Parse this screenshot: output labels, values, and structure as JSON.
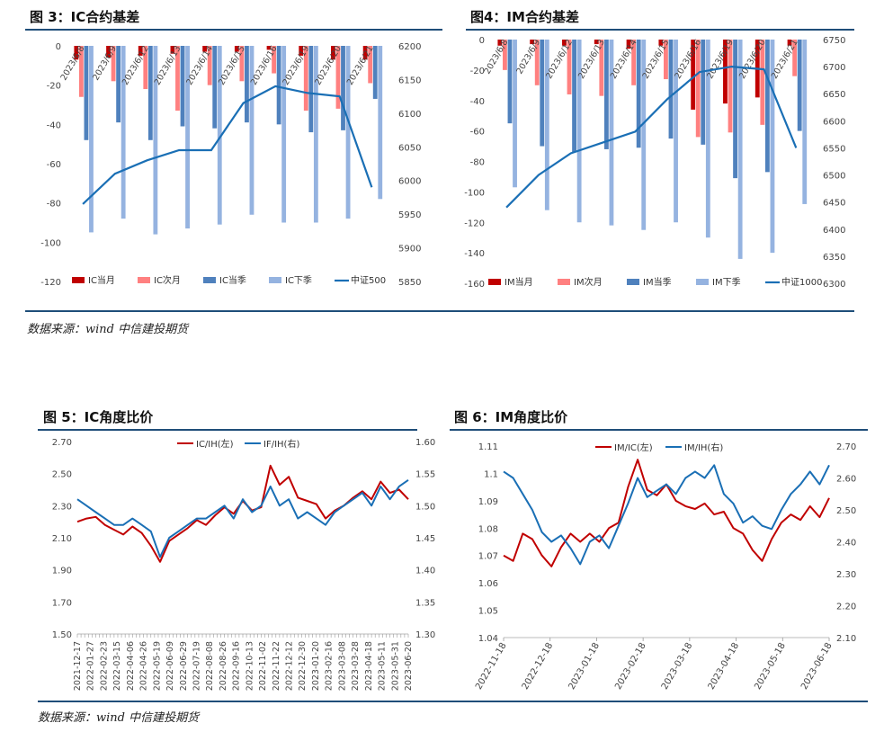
{
  "titles": {
    "fig3": "图 3：IC合约基差",
    "fig4": "图4：IM合约基差",
    "fig5": "图 5：IC角度比价",
    "fig6": "图 6：IM角度比价"
  },
  "source_top": "数据来源：wind 中信建投期货",
  "source_bottom": "数据来源：wind 中信建投期货",
  "colors": {
    "rule": "#1f4e79",
    "dark_red": "#c00000",
    "light_red": "#ff8080",
    "mid_blue": "#4f81bd",
    "light_blue": "#95b3e0",
    "line_blue": "#1a6fb5"
  },
  "chart_data": [
    {
      "type": "bar",
      "title": "图 3：IC合约基差",
      "categories": [
        "2023/6/8",
        "2023/6/9",
        "2023/6/12",
        "2023/6/13",
        "2023/6/14",
        "2023/6/15",
        "2023/6/16",
        "2023/6/19",
        "2023/6/20",
        "2023/6/21"
      ],
      "ylim": [
        -120,
        0
      ],
      "y_ticks": [
        "0",
        "-20",
        "-40",
        "-60",
        "-80",
        "-100",
        "-120"
      ],
      "y2lim": [
        5850,
        6200
      ],
      "y2_ticks": [
        "6200",
        "6150",
        "6100",
        "6050",
        "6000",
        "5950",
        "5900",
        "5850"
      ],
      "series": [
        {
          "name": "IC当月",
          "values": [
            -7,
            -6,
            -5,
            -4,
            -3,
            -3,
            -2,
            -5,
            -7,
            -7
          ]
        },
        {
          "name": "IC次月",
          "values": [
            -26,
            -18,
            -22,
            -33,
            -20,
            -18,
            -14,
            -33,
            -32,
            -19
          ]
        },
        {
          "name": "IC当季",
          "values": [
            -48,
            -39,
            -48,
            -41,
            -42,
            -39,
            -40,
            -44,
            -43,
            -27
          ]
        },
        {
          "name": "IC下季",
          "values": [
            -95,
            -88,
            -96,
            -93,
            -91,
            -86,
            -90,
            -90,
            -88,
            -78
          ]
        }
      ],
      "line_series": {
        "name": "中证500",
        "values": [
          5965,
          6010,
          6030,
          6045,
          6045,
          6115,
          6140,
          6130,
          6125,
          5990
        ]
      },
      "legend": "bottom"
    },
    {
      "type": "bar",
      "title": "图4：IM合约基差",
      "categories": [
        "2023/6/8",
        "2023/6/9",
        "2023/6/12",
        "2023/6/13",
        "2023/6/14",
        "2023/6/15",
        "2023/6/16",
        "2023/6/19",
        "2023/6/20",
        "2023/6/21"
      ],
      "ylim": [
        -160,
        0
      ],
      "y_ticks": [
        "0",
        "-20",
        "-40",
        "-60",
        "-80",
        "-100",
        "-120",
        "-140",
        "-160"
      ],
      "y2lim": [
        6300,
        6750
      ],
      "y2_ticks": [
        "6750",
        "6700",
        "6650",
        "6600",
        "6550",
        "6500",
        "6450",
        "6400",
        "6350",
        "6300"
      ],
      "series": [
        {
          "name": "IM当月",
          "values": [
            -4,
            -3,
            -4,
            -3,
            -6,
            -4,
            -46,
            -42,
            -38,
            -4
          ]
        },
        {
          "name": "IM次月",
          "values": [
            -20,
            -30,
            -36,
            -37,
            -30,
            -26,
            -64,
            -61,
            -56,
            -24
          ]
        },
        {
          "name": "IM当季",
          "values": [
            -55,
            -70,
            -74,
            -72,
            -71,
            -65,
            -69,
            -91,
            -87,
            -60
          ]
        },
        {
          "name": "IM下季",
          "values": [
            -97,
            -112,
            -120,
            -122,
            -125,
            -120,
            -130,
            -144,
            -140,
            -108
          ]
        }
      ],
      "line_series": {
        "name": "中证1000",
        "values": [
          6440,
          6500,
          6540,
          6560,
          6580,
          6640,
          6690,
          6700,
          6695,
          6550
        ]
      },
      "legend": "bottom"
    },
    {
      "type": "line",
      "title": "图 5：IC角度比价",
      "x_ticks": [
        "2021-12-17",
        "2022-01-27",
        "2022-02-23",
        "2022-03-15",
        "2022-04-06",
        "2022-04-26",
        "2022-05-19",
        "2022-06-09",
        "2022-06-29",
        "2022-07-19",
        "2022-08-08",
        "2022-08-26",
        "2022-09-16",
        "2022-10-13",
        "2022-11-02",
        "2022-11-22",
        "2022-12-12",
        "2022-12-30",
        "2023-01-20",
        "2023-02-16",
        "2023-03-08",
        "2023-03-28",
        "2023-04-18",
        "2023-05-11",
        "2023-05-31",
        "2023-06-20"
      ],
      "ylim": [
        1.5,
        2.7
      ],
      "y_ticks": [
        "2.70",
        "2.50",
        "2.30",
        "2.10",
        "1.90",
        "1.70",
        "1.50"
      ],
      "y2lim": [
        1.3,
        1.6
      ],
      "y2_ticks": [
        "1.60",
        "1.55",
        "1.50",
        "1.45",
        "1.40",
        "1.35",
        "1.30"
      ],
      "series": [
        {
          "name": "IC/IH(左)",
          "values": [
            2.2,
            2.22,
            2.23,
            2.18,
            2.15,
            2.12,
            2.17,
            2.13,
            2.05,
            1.95,
            2.08,
            2.12,
            2.16,
            2.21,
            2.18,
            2.24,
            2.29,
            2.25,
            2.33,
            2.27,
            2.29,
            2.55,
            2.43,
            2.48,
            2.35,
            2.33,
            2.31,
            2.22,
            2.27,
            2.3,
            2.35,
            2.39,
            2.34,
            2.45,
            2.38,
            2.4,
            2.34
          ]
        },
        {
          "name": "IF/IH(右)",
          "values": [
            1.51,
            1.5,
            1.49,
            1.48,
            1.47,
            1.47,
            1.48,
            1.47,
            1.46,
            1.42,
            1.45,
            1.46,
            1.47,
            1.48,
            1.48,
            1.49,
            1.5,
            1.48,
            1.51,
            1.49,
            1.5,
            1.53,
            1.5,
            1.51,
            1.48,
            1.49,
            1.48,
            1.47,
            1.49,
            1.5,
            1.51,
            1.52,
            1.5,
            1.53,
            1.51,
            1.53,
            1.54
          ]
        }
      ],
      "legend": "top"
    },
    {
      "type": "line",
      "title": "图 6：IM角度比价",
      "x_ticks": [
        "2022-11-18",
        "2022-12-18",
        "2023-01-18",
        "2023-02-18",
        "2023-03-18",
        "2023-04-18",
        "2023-05-18",
        "2023-06-18"
      ],
      "ylim": [
        1.04,
        1.11
      ],
      "y_ticks": [
        "1.11",
        "1.1",
        "1.09",
        "1.08",
        "1.07",
        "1.06",
        "1.05",
        "1.04"
      ],
      "y2lim": [
        2.1,
        2.7
      ],
      "y2_ticks": [
        "2.70",
        "2.60",
        "2.50",
        "2.40",
        "2.30",
        "2.20",
        "2.10"
      ],
      "series": [
        {
          "name": "IM/IC(左)",
          "values": [
            1.07,
            1.068,
            1.078,
            1.076,
            1.07,
            1.066,
            1.073,
            1.078,
            1.075,
            1.078,
            1.075,
            1.08,
            1.082,
            1.095,
            1.105,
            1.094,
            1.092,
            1.096,
            1.09,
            1.088,
            1.087,
            1.089,
            1.085,
            1.086,
            1.08,
            1.078,
            1.072,
            1.068,
            1.076,
            1.082,
            1.085,
            1.083,
            1.088,
            1.084,
            1.091
          ]
        },
        {
          "name": "IM/IH(右)",
          "values": [
            2.62,
            2.6,
            2.55,
            2.5,
            2.43,
            2.4,
            2.42,
            2.38,
            2.33,
            2.4,
            2.42,
            2.38,
            2.45,
            2.52,
            2.6,
            2.54,
            2.56,
            2.58,
            2.55,
            2.6,
            2.62,
            2.6,
            2.64,
            2.55,
            2.52,
            2.46,
            2.48,
            2.45,
            2.44,
            2.5,
            2.55,
            2.58,
            2.62,
            2.58,
            2.64
          ]
        }
      ],
      "legend": "top"
    }
  ]
}
